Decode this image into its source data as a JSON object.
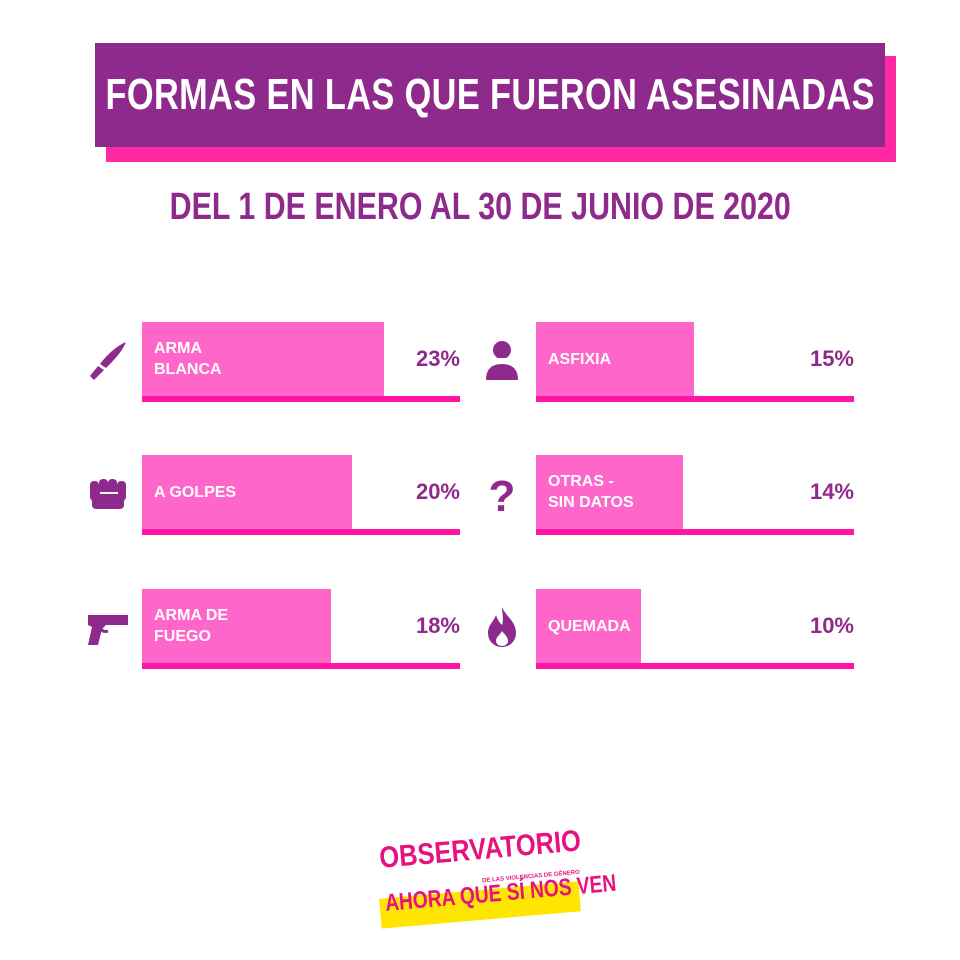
{
  "colors": {
    "purple": "#8e2a8b",
    "magenta": "#ff2aa3",
    "bar_pink": "#ff66c9",
    "baseline_pink": "#ff14a3",
    "logo_yellow": "#ffe600"
  },
  "chart_data": {
    "type": "bar",
    "title": "FORMAS EN LAS QUE FUERON ASESINADAS",
    "subtitle": "DEL 1 DE ENERO AL 30 DE JUNIO DE 2020",
    "unit": "%",
    "items": [
      {
        "label": "ARMA\nBLANCA",
        "value": 23,
        "display": "23%",
        "icon": "knife-icon"
      },
      {
        "label": "A GOLPES",
        "value": 20,
        "display": "20%",
        "icon": "fist-icon"
      },
      {
        "label": "ARMA DE\nFUEGO",
        "value": 18,
        "display": "18%",
        "icon": "gun-icon"
      },
      {
        "label": "ASFIXIA",
        "value": 15,
        "display": "15%",
        "icon": "asphyxia-person-icon"
      },
      {
        "label": "OTRAS -\nSIN DATOS",
        "value": 14,
        "display": "14%",
        "icon": "question-mark-icon"
      },
      {
        "label": "QUEMADA",
        "value": 10,
        "display": "10%",
        "icon": "flame-icon"
      }
    ]
  },
  "logo": {
    "line1": "OBSERVATORIO",
    "line2": "DE LAS VIOLENCIAS DE GÉNERO",
    "line3": "AHORA QUE SÍ NOS VEN"
  }
}
